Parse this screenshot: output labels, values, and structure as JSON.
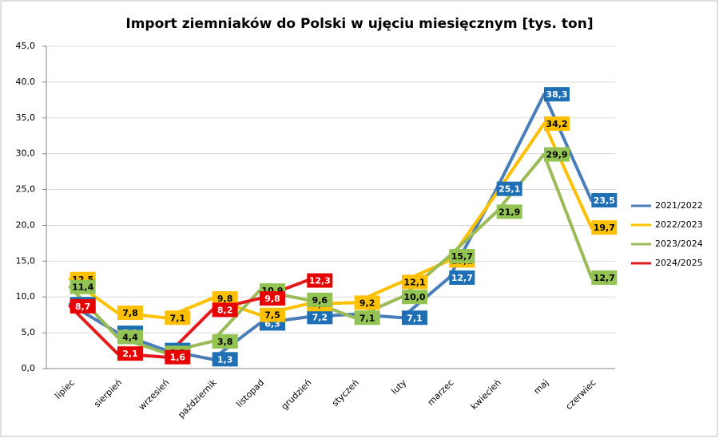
{
  "chart_data": {
    "type": "line",
    "title": "Import ziemniaków do Polski w ujęciu miesięcznym [tys. ton]",
    "categories": [
      "lipiec",
      "sierpień",
      "wrzesień",
      "październik",
      "listopad",
      "grudzień",
      "styczeń",
      "luty",
      "marzec",
      "kwiecień",
      "maj",
      "czerwiec"
    ],
    "series": [
      {
        "name": "2021/2022",
        "color": "#4a7ebb",
        "label_text": "#ffffff",
        "label_bg": "#1f6fb5",
        "values": [
          9.0,
          5.0,
          2.6,
          1.3,
          6.3,
          7.2,
          7.6,
          7.1,
          12.7,
          25.1,
          38.3,
          23.5
        ],
        "value_labels": [
          "9,0",
          "5,0",
          "2,6",
          "1,3",
          "6,3",
          "7,2",
          null,
          "7,1",
          "12,7",
          "25,1",
          "38,3",
          "23,5"
        ]
      },
      {
        "name": "2022/2023",
        "color": "#ffc000",
        "label_text": "#000000",
        "label_bg": "#ffc000",
        "values": [
          12.5,
          7.8,
          7.1,
          9.8,
          7.5,
          9.0,
          9.2,
          12.1,
          15.1,
          24.5,
          34.2,
          19.7
        ],
        "value_labels": [
          "12,5",
          "7,8",
          "7,1",
          "9,8",
          "7,5",
          "9,0",
          "9,2",
          "12,1",
          "15,1",
          null,
          "34,2",
          "19,7"
        ]
      },
      {
        "name": "2023/2024",
        "color": "#9bbb59",
        "label_text": "#000000",
        "label_bg": "#92c353",
        "values": [
          11.4,
          4.4,
          2.2,
          3.8,
          10.9,
          9.6,
          7.1,
          10.0,
          15.7,
          21.9,
          29.9,
          12.7
        ],
        "value_labels": [
          "11,4",
          "4,4",
          "2,2",
          "3,8",
          "10,9",
          "9,6",
          "7,1",
          "10,0",
          "15,7",
          "21,9",
          "29,9",
          "12,7"
        ]
      },
      {
        "name": "2024/2025",
        "color": "#e31a1c",
        "label_text": "#ffffff",
        "label_bg": "#e60000",
        "values": [
          8.7,
          2.1,
          1.6,
          8.2,
          9.8,
          12.3,
          null,
          null,
          null,
          null,
          null,
          null
        ],
        "value_labels": [
          "8,7",
          "2,1",
          "1,6",
          "8,2",
          "9,8",
          "12,3",
          null,
          null,
          null,
          null,
          null,
          null
        ]
      }
    ],
    "ylim": [
      0,
      45
    ],
    "yticks": [
      {
        "value": 0,
        "label": "0,0"
      },
      {
        "value": 5,
        "label": "5,0"
      },
      {
        "value": 10,
        "label": "10,0"
      },
      {
        "value": 15,
        "label": "15,0"
      },
      {
        "value": 20,
        "label": "20,0"
      },
      {
        "value": 25,
        "label": "25,0"
      },
      {
        "value": 30,
        "label": "30,0"
      },
      {
        "value": 35,
        "label": "35,0"
      },
      {
        "value": 40,
        "label": "40.0"
      },
      {
        "value": 45,
        "label": "45,0"
      }
    ],
    "grid": true,
    "legend": "right"
  }
}
